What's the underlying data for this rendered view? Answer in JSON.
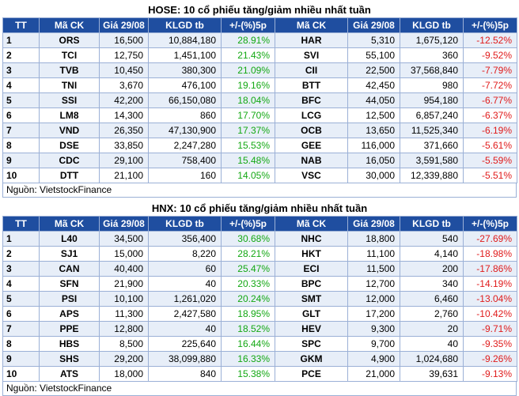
{
  "hose": {
    "title": "HOSE: 10 cổ phiếu tăng/giảm nhiều nhất tuần",
    "headers": [
      "TT",
      "Mã CK",
      "Giá 29/08",
      "KLGD tb",
      "+/-(%)5p",
      "Mã CK",
      "Giá 29/08",
      "KLGD tb",
      "+/-(%)5p"
    ],
    "rows": [
      [
        "1",
        "ORS",
        "16,500",
        "10,884,180",
        "28.91%",
        "HAR",
        "5,310",
        "1,675,120",
        "-12.52%"
      ],
      [
        "2",
        "TCI",
        "12,750",
        "1,451,100",
        "21.43%",
        "SVI",
        "55,100",
        "360",
        "-9.52%"
      ],
      [
        "3",
        "TVB",
        "10,450",
        "380,300",
        "21.09%",
        "CII",
        "22,500",
        "37,568,840",
        "-7.79%"
      ],
      [
        "4",
        "TNI",
        "3,670",
        "476,100",
        "19.16%",
        "BTT",
        "42,450",
        "980",
        "-7.72%"
      ],
      [
        "5",
        "SSI",
        "42,200",
        "66,150,080",
        "18.04%",
        "BFC",
        "44,050",
        "954,180",
        "-6.77%"
      ],
      [
        "6",
        "LM8",
        "14,300",
        "860",
        "17.70%",
        "LCG",
        "12,500",
        "6,857,240",
        "-6.37%"
      ],
      [
        "7",
        "VND",
        "26,350",
        "47,130,900",
        "17.37%",
        "OCB",
        "13,650",
        "11,525,340",
        "-6.19%"
      ],
      [
        "8",
        "DSE",
        "33,850",
        "2,247,280",
        "15.53%",
        "GEE",
        "116,000",
        "371,660",
        "-5.61%"
      ],
      [
        "9",
        "CDC",
        "29,100",
        "758,400",
        "15.48%",
        "NAB",
        "16,050",
        "3,591,580",
        "-5.59%"
      ],
      [
        "10",
        "DTT",
        "21,100",
        "160",
        "14.05%",
        "VSC",
        "30,000",
        "12,339,880",
        "-5.51%"
      ]
    ],
    "source": "Nguồn: VietstockFinance"
  },
  "hnx": {
    "title": "HNX: 10 cổ phiếu tăng/giảm nhiều nhất tuần",
    "headers": [
      "TT",
      "Mã CK",
      "Giá 29/08",
      "KLGD tb",
      "+/-(%)5p",
      "Mã CK",
      "Giá 29/08",
      "KLGD tb",
      "+/-(%)5p"
    ],
    "rows": [
      [
        "1",
        "L40",
        "34,500",
        "356,400",
        "30.68%",
        "NHC",
        "18,800",
        "540",
        "-27.69%"
      ],
      [
        "2",
        "SJ1",
        "15,000",
        "8,220",
        "28.21%",
        "HKT",
        "11,100",
        "4,140",
        "-18.98%"
      ],
      [
        "3",
        "CAN",
        "40,400",
        "60",
        "25.47%",
        "ECI",
        "11,500",
        "200",
        "-17.86%"
      ],
      [
        "4",
        "SFN",
        "21,900",
        "40",
        "20.33%",
        "BPC",
        "12,700",
        "340",
        "-14.19%"
      ],
      [
        "5",
        "PSI",
        "10,100",
        "1,261,020",
        "20.24%",
        "SMT",
        "12,000",
        "6,460",
        "-13.04%"
      ],
      [
        "6",
        "APS",
        "11,300",
        "2,427,580",
        "18.95%",
        "GLT",
        "17,200",
        "2,760",
        "-10.42%"
      ],
      [
        "7",
        "PPE",
        "12,800",
        "40",
        "18.52%",
        "HEV",
        "9,300",
        "20",
        "-9.71%"
      ],
      [
        "8",
        "HBS",
        "8,500",
        "225,640",
        "16.44%",
        "SPC",
        "9,700",
        "40",
        "-9.35%"
      ],
      [
        "9",
        "SHS",
        "29,200",
        "38,099,880",
        "16.33%",
        "GKM",
        "4,900",
        "1,024,680",
        "-9.26%"
      ],
      [
        "10",
        "ATS",
        "18,000",
        "840",
        "15.38%",
        "PCE",
        "21,000",
        "39,631",
        "-9.13%"
      ]
    ],
    "source": "Nguồn: VietstockFinance"
  },
  "colors": {
    "header_bg": "#1f4ea0",
    "up": "#13a813",
    "down": "#e01a1a",
    "stripe": "#e7eef8"
  }
}
